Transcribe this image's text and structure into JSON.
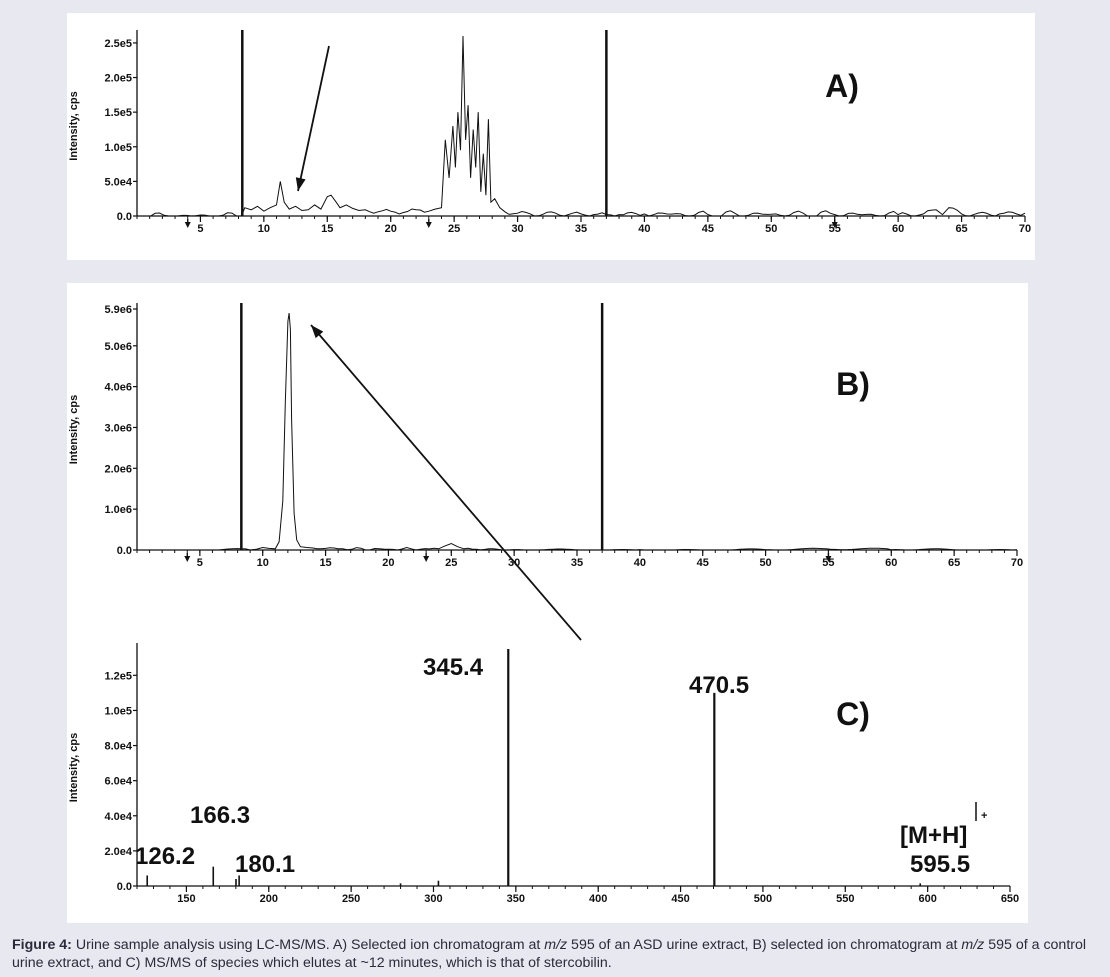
{
  "chart_data": [
    {
      "id": "A",
      "type": "line",
      "panel_label": "A)",
      "ylabel": "Intensity, cps",
      "xlim": [
        0,
        70
      ],
      "ylim": [
        0,
        260000
      ],
      "x_ticks": [
        "5",
        "10",
        "15",
        "20",
        "25",
        "30",
        "35",
        "40",
        "45",
        "50",
        "55",
        "60",
        "65",
        "70"
      ],
      "y_ticks": [
        "0.0",
        "5.0e4",
        "1.0e5",
        "1.5e5",
        "2.0e5",
        "2.5e5"
      ],
      "y_tick_values": [
        0,
        50000,
        100000,
        150000,
        200000,
        250000
      ],
      "arrow_ticks_x": [
        4,
        23,
        55
      ],
      "spikes_x": [
        8.3,
        37
      ],
      "series": [
        {
          "values_x": [
            0,
            8.2,
            8.3,
            8.5,
            9,
            9.5,
            10,
            10.5,
            11,
            11.3,
            11.6,
            12,
            12.5,
            13,
            13.5,
            14,
            14.5,
            15,
            15.3,
            15.7,
            16,
            16.5,
            17,
            17.5,
            18,
            19,
            20,
            21,
            22,
            23,
            23.5,
            24,
            24.3,
            24.6,
            24.9,
            25.1,
            25.3,
            25.5,
            25.7,
            25.9,
            26.1,
            26.3,
            26.5,
            26.7,
            26.9,
            27.1,
            27.3,
            27.5,
            27.7,
            27.9,
            28.2,
            28.6,
            29,
            30,
            31,
            32,
            33,
            34,
            35,
            36,
            37,
            38,
            40,
            45,
            50,
            55,
            60,
            62,
            63,
            63.5,
            64,
            65,
            66,
            68,
            70
          ],
          "values_y": [
            0,
            0,
            3000,
            12000,
            9000,
            14000,
            7000,
            12000,
            16000,
            50000,
            20000,
            10000,
            14000,
            8000,
            9000,
            16000,
            10000,
            28000,
            30000,
            20000,
            12000,
            16000,
            11000,
            8000,
            9000,
            6000,
            7000,
            5000,
            9000,
            7000,
            10000,
            12000,
            110000,
            55000,
            130000,
            70000,
            150000,
            95000,
            260000,
            110000,
            160000,
            55000,
            125000,
            70000,
            150000,
            35000,
            90000,
            30000,
            140000,
            20000,
            25000,
            12000,
            6000,
            4000,
            3000,
            2500,
            4000,
            2000,
            3000,
            2000,
            2000,
            2000,
            3000,
            2000,
            2500,
            2000,
            2000,
            3000,
            9000,
            2000,
            12000,
            3000,
            2500,
            3000,
            4000
          ]
        }
      ]
    },
    {
      "id": "B",
      "type": "line",
      "panel_label": "B)",
      "ylabel": "Intensity, cps",
      "xlim": [
        0,
        70
      ],
      "ylim": [
        0,
        5900000
      ],
      "x_ticks": [
        "5",
        "10",
        "15",
        "20",
        "25",
        "30",
        "35",
        "40",
        "45",
        "50",
        "55",
        "60",
        "65",
        "70"
      ],
      "y_ticks": [
        "0.0",
        "1.0e6",
        "2.0e6",
        "3.0e6",
        "4.0e6",
        "5.0e6",
        "5.9e6"
      ],
      "y_tick_values": [
        0,
        1000000,
        2000000,
        3000000,
        4000000,
        5000000,
        5900000
      ],
      "arrow_ticks_x": [
        4,
        23,
        55
      ],
      "spikes_x": [
        8.3,
        37
      ],
      "series": [
        {
          "values_x": [
            0,
            9,
            9.5,
            10,
            10.5,
            11,
            11.3,
            11.6,
            11.8,
            12,
            12.1,
            12.2,
            12.3,
            12.5,
            12.7,
            13,
            13.5,
            14,
            15,
            16,
            20,
            24,
            24.5,
            25,
            25.5,
            26,
            27,
            30,
            40,
            50,
            60,
            70
          ],
          "values_y": [
            0,
            0,
            20000,
            60000,
            40000,
            30000,
            200000,
            1200000,
            3600000,
            5600000,
            5800000,
            5400000,
            3200000,
            900000,
            250000,
            80000,
            60000,
            50000,
            40000,
            30000,
            20000,
            30000,
            100000,
            160000,
            80000,
            30000,
            20000,
            10000,
            10000,
            8000,
            8000,
            5000
          ]
        }
      ]
    },
    {
      "id": "C",
      "type": "bar",
      "panel_label": "C)",
      "ylabel": "Intensity, cps",
      "xlim": [
        120,
        650
      ],
      "ylim": [
        0,
        135000
      ],
      "x_ticks": [
        "150",
        "200",
        "250",
        "300",
        "350",
        "400",
        "450",
        "500",
        "550",
        "600",
        "650"
      ],
      "y_ticks": [
        "0.0",
        "2.0e4",
        "4.0e4",
        "6.0e4",
        "8.0e4",
        "1.0e5",
        "1.2e5"
      ],
      "y_tick_values": [
        0,
        20000,
        40000,
        60000,
        80000,
        100000,
        120000
      ],
      "peaks_x": [
        126.2,
        166.3,
        180.1,
        182,
        280,
        303,
        345.4,
        470.5,
        595.5
      ],
      "peaks_y": [
        6000,
        11000,
        4000,
        6000,
        1500,
        3000,
        135000,
        110000,
        1500
      ],
      "peak_labels": [
        "126.2",
        "166.3",
        "180.1",
        "345.4",
        "470.5",
        "[M+H]",
        "+",
        "595.5"
      ]
    }
  ],
  "caption": {
    "label": "Figure 4:",
    "line1": " Urine sample analysis using LC-MS/MS. A) Selected ion chromatogram at ",
    "mz1": "m/z",
    "line2": " 595 of an ASD urine extract, B) selected ion chromatogram at ",
    "mz2": "m/z",
    "line3": " 595 of a control urine extract, and C) MS/MS of species which elutes at ~12 minutes, which is that of stercobilin."
  }
}
